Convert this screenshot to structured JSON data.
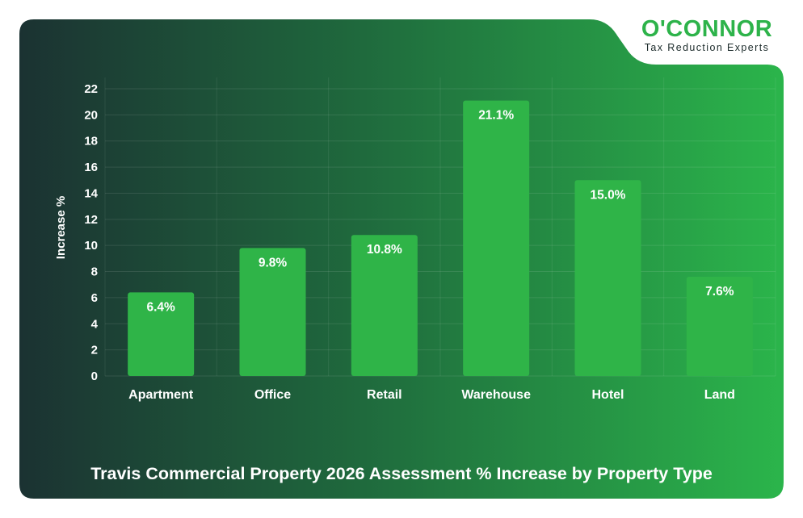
{
  "logo": {
    "name": "O'CONNOR",
    "tagline": "Tax Reduction Experts"
  },
  "colors": {
    "bar": "#2fb448",
    "bar_label": "#ffffff",
    "axis_text": "#ffffff",
    "brand_green": "#2db34a",
    "background_dark": "#1c3534",
    "background_light": "#2bb24a"
  },
  "chart_data": {
    "type": "bar",
    "title": "Travis Commercial Property 2026 Assessment % Increase by Property Type",
    "xlabel": "",
    "ylabel": "Increase %",
    "categories": [
      "Apartment",
      "Office",
      "Retail",
      "Warehouse",
      "Hotel",
      "Land"
    ],
    "values": [
      6.4,
      9.8,
      10.8,
      21.1,
      15.0,
      7.6
    ],
    "data_labels": [
      "6.4%",
      "9.8%",
      "10.8%",
      "21.1%",
      "15.0%",
      "7.6%"
    ],
    "ylim": [
      0,
      22
    ],
    "yticks": [
      0,
      2,
      4,
      6,
      8,
      10,
      12,
      14,
      16,
      18,
      20,
      22
    ],
    "grid": true
  }
}
